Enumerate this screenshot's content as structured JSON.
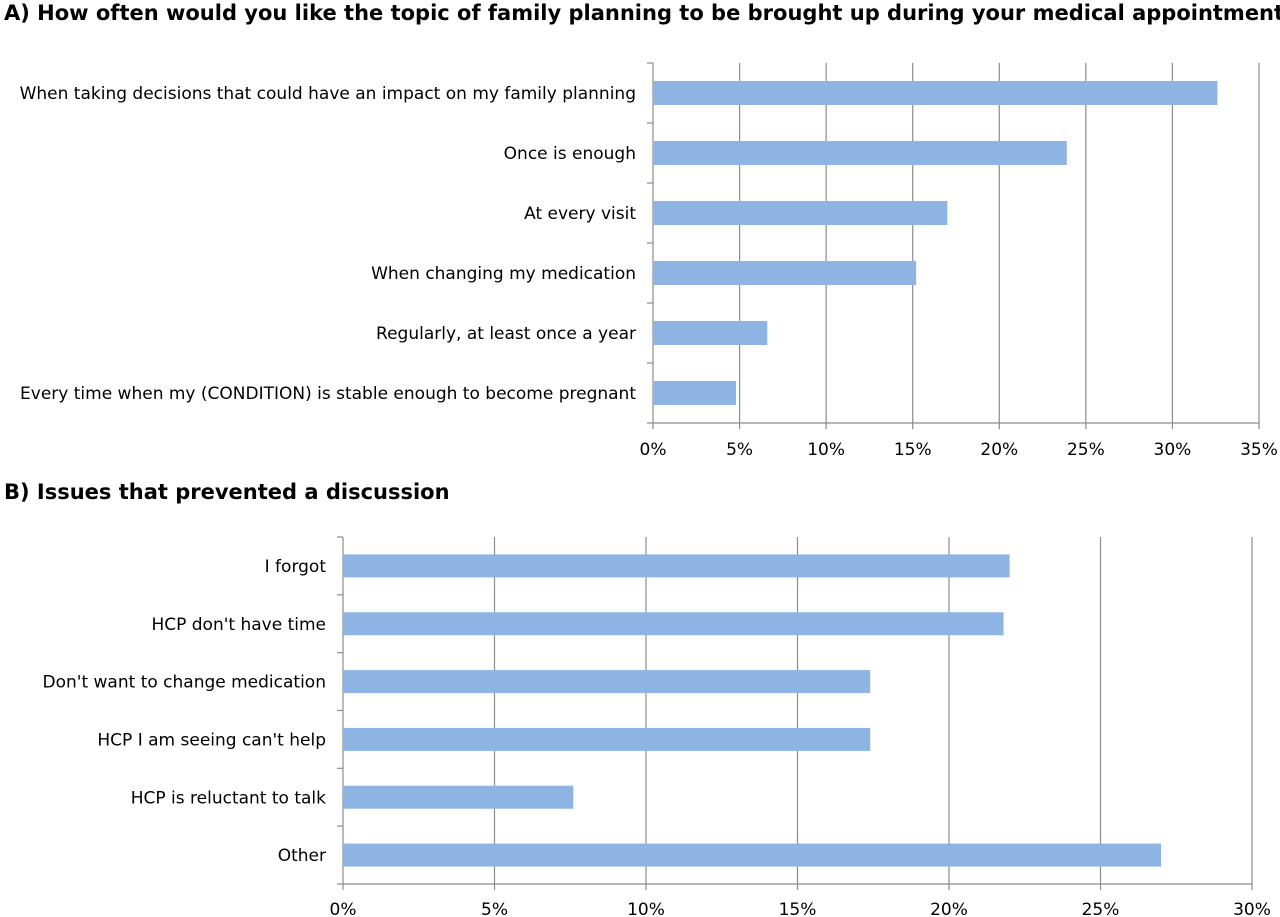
{
  "chart_data": [
    {
      "type": "bar",
      "orientation": "horizontal",
      "title": "A) How often would you like the topic of family planning to be brought up during your medical appointments?",
      "categories": [
        "When taking decisions that could have an impact on my family planning",
        "Once is enough",
        "At every visit",
        "When changing my medication",
        "Regularly, at least once a year",
        "Every time when my (CONDITION) is stable enough to become pregnant"
      ],
      "values": [
        32.6,
        23.9,
        17.0,
        15.2,
        6.6,
        4.8
      ],
      "xlim": [
        0,
        35
      ],
      "xticks": [
        "0%",
        "5%",
        "10%",
        "15%",
        "20%",
        "25%",
        "30%",
        "35%"
      ],
      "grid": true,
      "bar_color": "#8eb4e3"
    },
    {
      "type": "bar",
      "orientation": "horizontal",
      "title": "B) Issues that prevented a discussion",
      "categories": [
        "I forgot",
        "HCP don't have time",
        "Don't want to change medication",
        "HCP I am seeing can't help",
        "HCP is reluctant to talk",
        "Other"
      ],
      "values": [
        22.0,
        21.8,
        17.4,
        17.4,
        7.6,
        27.0
      ],
      "xlim": [
        0,
        30
      ],
      "xticks": [
        "0%",
        "5%",
        "10%",
        "15%",
        "20%",
        "25%",
        "30%"
      ],
      "grid": true,
      "bar_color": "#8eb4e3"
    }
  ]
}
